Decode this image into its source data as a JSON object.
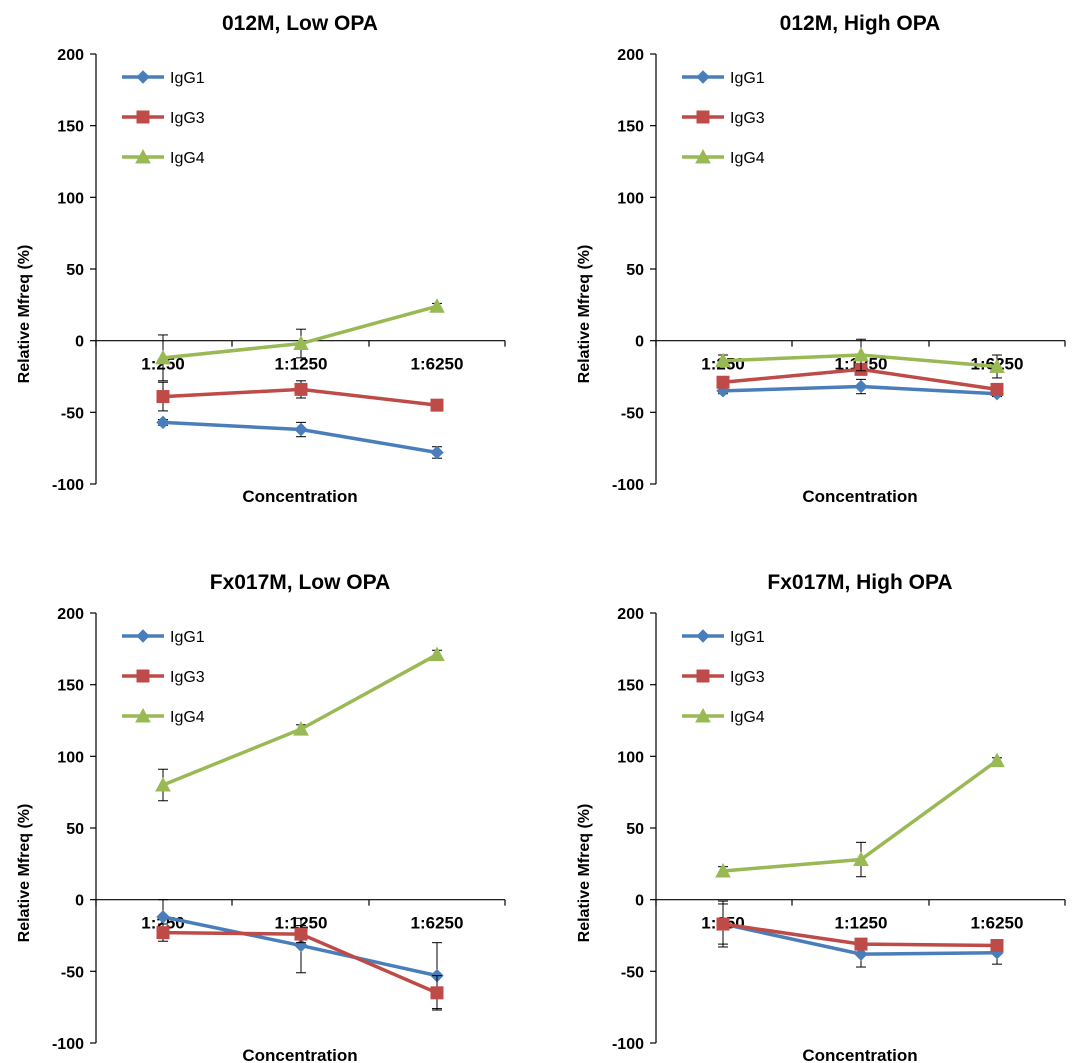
{
  "figure": {
    "ylabel": "Relative Mfreq (%)",
    "xlabel": "Concentration",
    "categories": [
      "1:250",
      "1:1250",
      "1:6250"
    ],
    "yticks": [
      "200",
      "150",
      "100",
      "50",
      "0",
      "-50",
      "-100"
    ],
    "colors": {
      "IgG1": "#4A7EBB",
      "IgG3": "#BE4B48",
      "IgG4": "#98B954",
      "axis": "#000000",
      "errorbar": "#000000"
    },
    "markers": {
      "IgG1": "diamond",
      "IgG3": "square",
      "IgG4": "triangle"
    }
  },
  "chart_data": [
    {
      "type": "line",
      "title": "012M, Low OPA",
      "xlabel": "Concentration",
      "ylabel": "Relative Mfreq (%)",
      "ylim": [
        -100,
        200
      ],
      "categories": [
        "1:250",
        "1:1250",
        "1:6250"
      ],
      "legend_position": "top-left",
      "series": [
        {
          "name": "IgG1",
          "values": [
            -57,
            -62,
            -78
          ],
          "errors": [
            2,
            5,
            4
          ]
        },
        {
          "name": "IgG3",
          "values": [
            -39,
            -34,
            -45
          ],
          "errors": [
            10,
            6,
            2
          ]
        },
        {
          "name": "IgG4",
          "values": [
            -12,
            -2,
            24
          ],
          "errors": [
            16,
            10,
            2
          ]
        }
      ]
    },
    {
      "type": "line",
      "title": "012M, High OPA",
      "xlabel": "Concentration",
      "ylabel": "Relative Mfreq (%)",
      "ylim": [
        -100,
        200
      ],
      "categories": [
        "1:250",
        "1:1250",
        "1:6250"
      ],
      "legend_position": "top-left",
      "series": [
        {
          "name": "IgG1",
          "values": [
            -35,
            -32,
            -37
          ],
          "errors": [
            2,
            5,
            2
          ]
        },
        {
          "name": "IgG3",
          "values": [
            -29,
            -20,
            -34
          ],
          "errors": [
            4,
            4,
            2
          ]
        },
        {
          "name": "IgG4",
          "values": [
            -14,
            -10,
            -18
          ],
          "errors": [
            4,
            11,
            8
          ]
        }
      ]
    },
    {
      "type": "line",
      "title": "Fx017M, Low OPA",
      "xlabel": "Concentration",
      "ylabel": "Relative Mfreq (%)",
      "ylim": [
        -100,
        200
      ],
      "categories": [
        "1:250",
        "1:1250",
        "1:6250"
      ],
      "legend_position": "top-left",
      "series": [
        {
          "name": "IgG1",
          "values": [
            -12,
            -32,
            -53
          ],
          "errors": [
            12,
            19,
            23
          ]
        },
        {
          "name": "IgG3",
          "values": [
            -23,
            -24,
            -65
          ],
          "errors": [
            6,
            6,
            12
          ]
        },
        {
          "name": "IgG4",
          "values": [
            80,
            119,
            171
          ],
          "errors": [
            11,
            3,
            3
          ]
        }
      ]
    },
    {
      "type": "line",
      "title": "Fx017M, High OPA",
      "xlabel": "Concentration",
      "ylabel": "Relative Mfreq (%)",
      "ylim": [
        -100,
        200
      ],
      "categories": [
        "1:250",
        "1:1250",
        "1:6250"
      ],
      "legend_position": "top-left",
      "series": [
        {
          "name": "IgG1",
          "values": [
            -17,
            -38,
            -37
          ],
          "errors": [
            14,
            9,
            8
          ]
        },
        {
          "name": "IgG3",
          "values": [
            -17,
            -31,
            -32
          ],
          "errors": [
            16,
            2,
            2
          ]
        },
        {
          "name": "IgG4",
          "values": [
            20,
            28,
            97
          ],
          "errors": [
            3,
            12,
            2
          ]
        }
      ]
    }
  ]
}
